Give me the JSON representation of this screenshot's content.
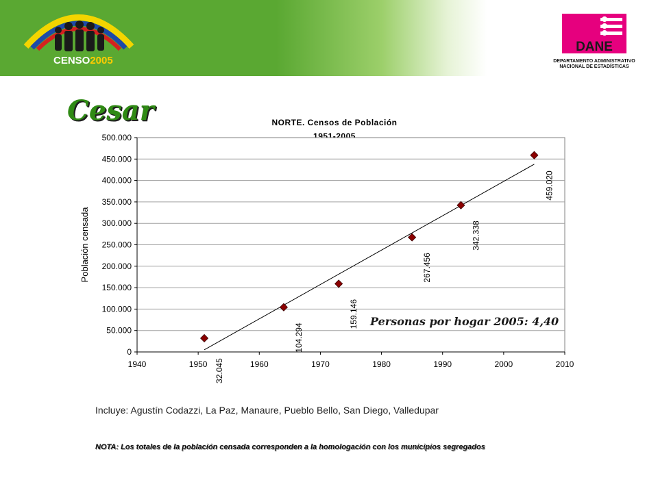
{
  "header": {
    "censo_logo": {
      "text_main": "CENSO",
      "text_year": "2005"
    },
    "dane_logo": {
      "brand": "DANE",
      "caption_line1": "DEPARTAMENTO ADMINISTRATIVO",
      "caption_line2": "NACIONAL DE ESTADÍSTICAS",
      "color": "#e6007e"
    },
    "banner_color": "#5aa832"
  },
  "page_title": "Cesar",
  "chart_data": {
    "type": "scatter",
    "title": "NORTE. Censos de Población",
    "subtitle": "1951-2005",
    "xlabel": "",
    "ylabel": "Población censada",
    "xlim": [
      1940,
      2010
    ],
    "ylim": [
      0,
      500000
    ],
    "x_ticks": [
      "1940",
      "1950",
      "1960",
      "1970",
      "1980",
      "1990",
      "2000",
      "2010"
    ],
    "y_ticks": [
      "0",
      "50.000",
      "100.000",
      "150.000",
      "200.000",
      "250.000",
      "300.000",
      "350.000",
      "400.000",
      "450.000",
      "500.000"
    ],
    "grid": true,
    "marker_color": "#8b0000",
    "points": [
      {
        "x": 1951,
        "y": 32045,
        "label": "32.045"
      },
      {
        "x": 1964,
        "y": 104294,
        "label": "104.294"
      },
      {
        "x": 1973,
        "y": 159146,
        "label": "159.146"
      },
      {
        "x": 1985,
        "y": 267456,
        "label": "267.456"
      },
      {
        "x": 1993,
        "y": 342338,
        "label": "342.338"
      },
      {
        "x": 2005,
        "y": 459020,
        "label": "459.020"
      }
    ],
    "trendline": {
      "x": [
        1951,
        2005
      ],
      "y": [
        5000,
        438000
      ]
    },
    "annotation": "Personas por hogar 2005: 4,40"
  },
  "footer": {
    "includes": "Incluye: Agustín Codazzi, La Paz, Manaure, Pueblo Bello, San Diego, Valledupar",
    "note": "NOTA: Los totales de la población censada corresponden a la homologación con los municipios segregados"
  }
}
